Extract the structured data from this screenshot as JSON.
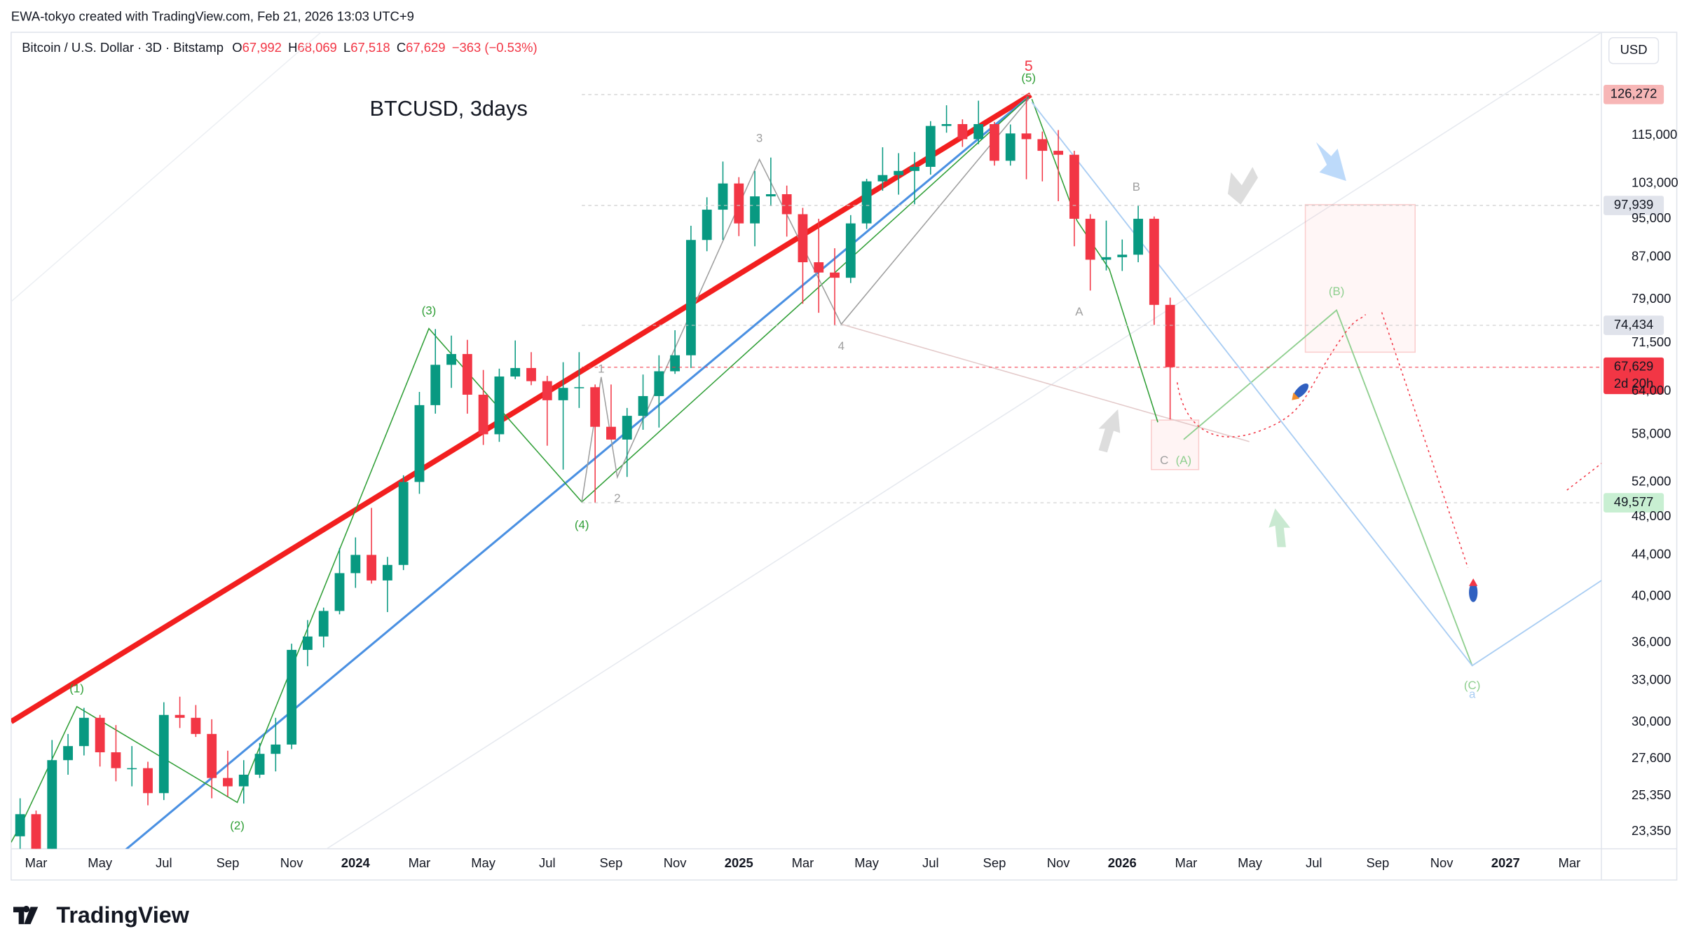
{
  "header": {
    "credit": "EWA-tokyo created with TradingView.com, Feb 21, 2026 13:03 UTC+9",
    "symbol": "Bitcoin / U.S. Dollar · 3D · Bitstamp",
    "ohlc": [
      {
        "key": "O",
        "value": "67,992"
      },
      {
        "key": "H",
        "value": "68,069"
      },
      {
        "key": "L",
        "value": "67,518"
      },
      {
        "key": "C",
        "value": "67,629"
      }
    ],
    "change": "−363 (−0.53%)",
    "currency": "USD"
  },
  "footer": {
    "logo": "TradingView"
  },
  "chart_data": {
    "type": "candlestick",
    "title": "BTCUSD, 3days",
    "log_scale": true,
    "grid": false,
    "up_color": "#089981",
    "down_color": "#f23645",
    "xlim": [
      1.22,
      51.0
    ],
    "xticks": [
      {
        "value": 2,
        "label": "Mar"
      },
      {
        "value": 4,
        "label": "May"
      },
      {
        "value": 6,
        "label": "Jul"
      },
      {
        "value": 8,
        "label": "Sep"
      },
      {
        "value": 10,
        "label": "Nov"
      },
      {
        "value": 12,
        "label": "2024"
      },
      {
        "value": 14,
        "label": "Mar"
      },
      {
        "value": 16,
        "label": "May"
      },
      {
        "value": 18,
        "label": "Jul"
      },
      {
        "value": 20,
        "label": "Sep"
      },
      {
        "value": 22,
        "label": "Nov"
      },
      {
        "value": 24,
        "label": "2025"
      },
      {
        "value": 26,
        "label": "Mar"
      },
      {
        "value": 28,
        "label": "May"
      },
      {
        "value": 30,
        "label": "Jul"
      },
      {
        "value": 32,
        "label": "Sep"
      },
      {
        "value": 34,
        "label": "Nov"
      },
      {
        "value": 36,
        "label": "2026"
      },
      {
        "value": 38,
        "label": "Mar"
      },
      {
        "value": 40,
        "label": "May"
      },
      {
        "value": 42,
        "label": "Jul"
      },
      {
        "value": 44,
        "label": "Sep"
      },
      {
        "value": 46,
        "label": "Nov"
      },
      {
        "value": 48,
        "label": "2027"
      },
      {
        "value": 50,
        "label": "Mar"
      }
    ],
    "ylim": [
      22450,
      145600
    ],
    "yticks": [
      {
        "value": 115000,
        "label": "115,000"
      },
      {
        "value": 103000,
        "label": "103,000"
      },
      {
        "value": 95000,
        "label": "95,000"
      },
      {
        "value": 87000,
        "label": "87,000"
      },
      {
        "value": 79000,
        "label": "79,000"
      },
      {
        "value": 71500,
        "label": "71,500"
      },
      {
        "value": 64000,
        "label": "64,000"
      },
      {
        "value": 58000,
        "label": "58,000"
      },
      {
        "value": 52000,
        "label": "52,000"
      },
      {
        "value": 48000,
        "label": "48,000"
      },
      {
        "value": 44000,
        "label": "44,000"
      },
      {
        "value": 40000,
        "label": "40,000"
      },
      {
        "value": 36000,
        "label": "36,000"
      },
      {
        "value": 33000,
        "label": "33,000"
      },
      {
        "value": 30000,
        "label": "30,000"
      },
      {
        "value": 27600,
        "label": "27,600"
      },
      {
        "value": 25350,
        "label": "25,350"
      },
      {
        "value": 23350,
        "label": "23,350"
      }
    ],
    "price_marks": [
      {
        "value": 126272,
        "label": "126,272",
        "color": "#f7b6b6",
        "text_color": "#131722"
      },
      {
        "value": 97939,
        "label": "97,939",
        "color": "#e0e3eb",
        "text_color": "#131722"
      },
      {
        "value": 74434,
        "label": "74,434",
        "color": "#e0e3eb",
        "text_color": "#131722"
      },
      {
        "value": 49577,
        "label": "49,577",
        "color": "#c8efd2",
        "text_color": "#131722"
      },
      {
        "value": 67629,
        "label": "67,629",
        "color": "#f23645",
        "text_color": "#ffffff"
      }
    ],
    "countdown": "2d 20h",
    "annotations": [
      "(1)",
      "(2)",
      "(3)",
      "(4)",
      "(5)",
      "5",
      "1",
      "2",
      "3",
      "4",
      "A",
      "B",
      "C",
      "(A)",
      "(B)",
      "(C)",
      "a"
    ],
    "candles": {
      "x": [
        1.5,
        2.0,
        2.5,
        3.0,
        3.5,
        4.0,
        4.5,
        5.0,
        5.5,
        6.0,
        6.5,
        7.0,
        7.5,
        8.0,
        8.5,
        9.0,
        9.5,
        10.0,
        10.5,
        11.0,
        11.5,
        12.0,
        12.5,
        13.0,
        13.5,
        14.0,
        14.5,
        15.0,
        15.5,
        16.0,
        16.5,
        17.0,
        17.5,
        18.0,
        18.5,
        19.0,
        19.5,
        20.0,
        20.5,
        21.0,
        21.5,
        22.0,
        22.5,
        23.0,
        23.5,
        24.0,
        24.5,
        25.0,
        25.5,
        26.0,
        26.5,
        27.0,
        27.5,
        28.0,
        28.5,
        29.0,
        29.5,
        30.0,
        30.5,
        31.0,
        31.5,
        32.0,
        32.5,
        33.0,
        33.5,
        34.0,
        34.5,
        35.0,
        35.5,
        36.0,
        36.5,
        37.0,
        37.5
      ],
      "open": [
        23100,
        24300,
        22400,
        27500,
        28400,
        30300,
        28000,
        27000,
        27000,
        25500,
        30500,
        30300,
        29200,
        26400,
        25900,
        26600,
        27900,
        28500,
        35400,
        36500,
        38700,
        42200,
        44000,
        41500,
        43000,
        52000,
        62000,
        68000,
        69700,
        63500,
        58000,
        66200,
        67500,
        65500,
        62700,
        64500,
        64600,
        59000,
        57300,
        60500,
        63300,
        67000,
        69500,
        90500,
        97000,
        103000,
        94000,
        100000,
        100500,
        96000,
        86000,
        84000,
        83000,
        94000,
        103500,
        105000,
        106000,
        107000,
        117500,
        118000,
        114000,
        118000,
        108500,
        115500,
        114000,
        111000,
        110000,
        95000,
        86500,
        87000,
        87500,
        95000,
        78000
      ],
      "high": [
        25200,
        24500,
        28800,
        29200,
        31000,
        30500,
        29800,
        28400,
        27400,
        31400,
        31800,
        31200,
        30200,
        28100,
        27500,
        28600,
        30300,
        35900,
        37900,
        39000,
        44700,
        45800,
        49000,
        43800,
        52800,
        63900,
        73800,
        72700,
        72000,
        67200,
        67400,
        71900,
        70000,
        66300,
        68400,
        70000,
        65000,
        65000,
        61600,
        66500,
        69500,
        73600,
        93500,
        99800,
        108300,
        104500,
        106000,
        109300,
        102500,
        97400,
        95000,
        88800,
        95800,
        104100,
        111900,
        110400,
        110700,
        118800,
        123200,
        119300,
        124500,
        118600,
        117900,
        126272,
        116000,
        116400,
        111000,
        96000,
        94600,
        90600,
        97939,
        95500,
        79300
      ],
      "low": [
        21400,
        21900,
        19600,
        26600,
        27800,
        27100,
        26200,
        25900,
        24800,
        25100,
        29600,
        29000,
        25200,
        25300,
        24900,
        26400,
        26800,
        28200,
        34100,
        35600,
        38400,
        40800,
        41200,
        38600,
        42500,
        50600,
        60800,
        64500,
        60800,
        56600,
        57000,
        65800,
        64900,
        56500,
        53500,
        61600,
        49577,
        57900,
        52600,
        58600,
        58900,
        66600,
        67500,
        88200,
        90500,
        91300,
        89200,
        97800,
        91200,
        78200,
        76600,
        74434,
        82000,
        92800,
        101300,
        100400,
        98200,
        105100,
        115700,
        112000,
        112700,
        107300,
        107300,
        104000,
        103500,
        98900,
        89200,
        80600,
        84400,
        84300,
        86000,
        74500,
        60000
      ],
      "close": [
        24300,
        22400,
        27500,
        28400,
        30300,
        28000,
        27000,
        27000,
        25500,
        30500,
        30300,
        29200,
        26400,
        25900,
        26600,
        27900,
        28500,
        35400,
        36500,
        38700,
        42200,
        44000,
        41500,
        43000,
        52000,
        62000,
        68000,
        69700,
        63500,
        58000,
        66200,
        67500,
        65500,
        62700,
        64500,
        64600,
        59000,
        57300,
        60500,
        63300,
        67000,
        69500,
        90500,
        97000,
        103000,
        94000,
        100000,
        100500,
        96000,
        86000,
        84000,
        83000,
        94000,
        103500,
        105000,
        106000,
        107000,
        117500,
        118000,
        114000,
        118000,
        108500,
        115500,
        114000,
        111000,
        110000,
        95000,
        86500,
        87000,
        87500,
        95000,
        78000,
        67629
      ]
    }
  }
}
